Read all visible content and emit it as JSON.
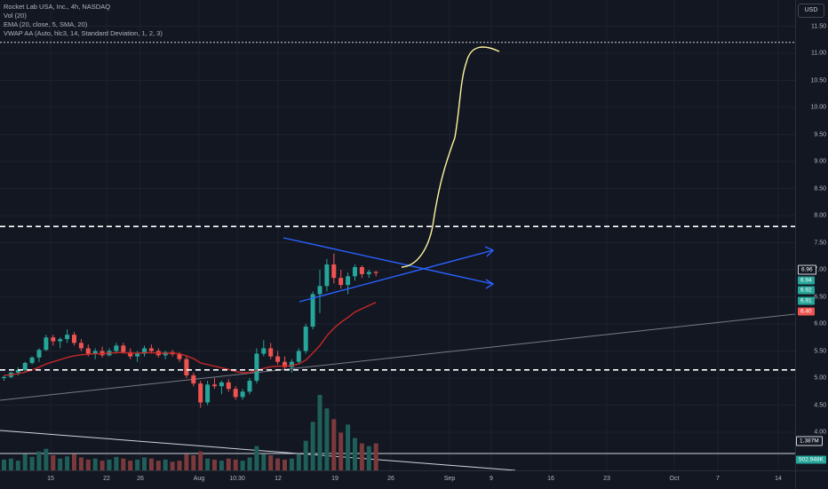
{
  "legend": {
    "title": "Rocket Lab USA, Inc., 4h, NASDAQ",
    "vol": "Vol (20)",
    "ema": "EMA (20, close, 5, SMA, 20)",
    "vwap": "VWAP AA (Auto, hlc3, 14, Standard Deviation, 1, 2, 3)"
  },
  "currency_button": "USD",
  "colors": {
    "background": "#131722",
    "up": "#26a69a",
    "down": "#ef5350",
    "ema": "#c62828",
    "trend": "#2962ff",
    "projection": "#fff59d"
  },
  "price_axis_labels": [
    "11.50",
    "11.00",
    "10.50",
    "10.00",
    "9.50",
    "9.00",
    "8.50",
    "8.00",
    "7.50",
    "7.00",
    "6.50",
    "6.00",
    "5.50",
    "5.00",
    "4.50",
    "4.00"
  ],
  "price_badges": [
    {
      "label": "6.96",
      "color": "#131722"
    },
    {
      "label": "6.94",
      "color": "#26a69a"
    },
    {
      "label": "6.92",
      "color": "#26a69a"
    },
    {
      "label": "6.91",
      "color": "#26a69a"
    },
    {
      "label": "6.40",
      "color": "#ef5350"
    }
  ],
  "volume_badges": [
    {
      "label": "1.387M",
      "color": "#131722"
    },
    {
      "label": "502.948K",
      "color": "#26a69a"
    }
  ],
  "time_axis_labels": [
    "15",
    "22",
    "26",
    "Aug",
    "10:30",
    "12",
    "19",
    "26",
    "Sep",
    "9",
    "16",
    "23",
    "Oct",
    "7",
    "14"
  ],
  "chart_data": {
    "type": "candlestick",
    "ylim": [
      3.6,
      11.7
    ],
    "hlines": [
      11.2,
      7.8,
      5.15
    ],
    "candles": [
      [
        5.0,
        5.05,
        4.95,
        5.02
      ],
      [
        5.02,
        5.12,
        5.0,
        5.1
      ],
      [
        5.1,
        5.2,
        5.05,
        5.15
      ],
      [
        5.15,
        5.3,
        5.1,
        5.28
      ],
      [
        5.28,
        5.4,
        5.25,
        5.38
      ],
      [
        5.38,
        5.55,
        5.3,
        5.52
      ],
      [
        5.52,
        5.8,
        5.5,
        5.75
      ],
      [
        5.75,
        5.8,
        5.6,
        5.68
      ],
      [
        5.68,
        5.75,
        5.55,
        5.72
      ],
      [
        5.72,
        5.9,
        5.65,
        5.8
      ],
      [
        5.8,
        5.85,
        5.6,
        5.65
      ],
      [
        5.65,
        5.72,
        5.5,
        5.55
      ],
      [
        5.55,
        5.62,
        5.4,
        5.45
      ],
      [
        5.45,
        5.55,
        5.35,
        5.5
      ],
      [
        5.5,
        5.58,
        5.38,
        5.42
      ],
      [
        5.42,
        5.55,
        5.4,
        5.5
      ],
      [
        5.5,
        5.65,
        5.45,
        5.6
      ],
      [
        5.6,
        5.65,
        5.45,
        5.48
      ],
      [
        5.48,
        5.55,
        5.35,
        5.4
      ],
      [
        5.4,
        5.5,
        5.3,
        5.45
      ],
      [
        5.45,
        5.6,
        5.4,
        5.55
      ],
      [
        5.55,
        5.62,
        5.45,
        5.5
      ],
      [
        5.5,
        5.55,
        5.38,
        5.42
      ],
      [
        5.42,
        5.5,
        5.35,
        5.48
      ],
      [
        5.48,
        5.52,
        5.4,
        5.44
      ],
      [
        5.44,
        5.48,
        5.3,
        5.35
      ],
      [
        5.35,
        5.42,
        5.0,
        5.05
      ],
      [
        5.05,
        5.1,
        4.85,
        4.9
      ],
      [
        4.9,
        4.95,
        4.45,
        4.55
      ],
      [
        4.55,
        4.95,
        4.5,
        4.88
      ],
      [
        4.88,
        5.0,
        4.8,
        4.85
      ],
      [
        4.85,
        4.95,
        4.7,
        4.92
      ],
      [
        4.92,
        4.98,
        4.75,
        4.8
      ],
      [
        4.8,
        4.85,
        4.6,
        4.65
      ],
      [
        4.65,
        4.8,
        4.6,
        4.75
      ],
      [
        4.75,
        5.0,
        4.7,
        4.95
      ],
      [
        4.95,
        5.55,
        4.9,
        5.45
      ],
      [
        5.45,
        5.7,
        5.4,
        5.55
      ],
      [
        5.55,
        5.65,
        5.35,
        5.4
      ],
      [
        5.4,
        5.5,
        5.25,
        5.3
      ],
      [
        5.3,
        5.4,
        5.15,
        5.2
      ],
      [
        5.2,
        5.35,
        5.1,
        5.3
      ],
      [
        5.3,
        5.55,
        5.25,
        5.5
      ],
      [
        5.5,
        6.0,
        5.45,
        5.95
      ],
      [
        5.95,
        6.6,
        5.9,
        6.55
      ],
      [
        6.55,
        7.0,
        6.2,
        6.7
      ],
      [
        6.7,
        7.2,
        6.6,
        7.1
      ],
      [
        7.1,
        7.3,
        6.75,
        6.85
      ],
      [
        6.85,
        7.0,
        6.65,
        6.72
      ],
      [
        6.72,
        6.95,
        6.55,
        6.88
      ],
      [
        6.88,
        7.1,
        6.8,
        7.05
      ],
      [
        7.05,
        7.08,
        6.85,
        6.92
      ],
      [
        6.92,
        7.0,
        6.85,
        6.96
      ],
      [
        6.96,
        6.98,
        6.88,
        6.94
      ]
    ],
    "volumes": [
      0.2,
      0.22,
      0.18,
      0.3,
      0.25,
      0.35,
      0.4,
      0.28,
      0.22,
      0.26,
      0.3,
      0.24,
      0.2,
      0.22,
      0.18,
      0.2,
      0.25,
      0.22,
      0.18,
      0.2,
      0.24,
      0.22,
      0.18,
      0.2,
      0.16,
      0.18,
      0.3,
      0.28,
      0.35,
      0.22,
      0.2,
      0.18,
      0.22,
      0.2,
      0.18,
      0.24,
      0.45,
      0.3,
      0.28,
      0.22,
      0.2,
      0.22,
      0.3,
      0.55,
      0.9,
      1.4,
      1.15,
      0.95,
      0.7,
      0.85,
      0.6,
      0.5,
      0.45,
      0.5
    ],
    "ema": [
      5.05,
      5.06,
      5.08,
      5.11,
      5.15,
      5.2,
      5.26,
      5.3,
      5.34,
      5.38,
      5.41,
      5.43,
      5.44,
      5.45,
      5.45,
      5.46,
      5.47,
      5.47,
      5.46,
      5.46,
      5.47,
      5.47,
      5.46,
      5.46,
      5.46,
      5.45,
      5.41,
      5.36,
      5.28,
      5.25,
      5.22,
      5.19,
      5.16,
      5.12,
      5.1,
      5.1,
      5.14,
      5.18,
      5.21,
      5.22,
      5.22,
      5.23,
      5.26,
      5.33,
      5.46,
      5.6,
      5.78,
      5.92,
      6.03,
      6.12,
      6.22,
      6.28,
      6.34,
      6.4
    ],
    "annotations": [
      "support trendline",
      "ascending trendline",
      "symmetric triangle",
      "projection to ~11.10"
    ]
  }
}
